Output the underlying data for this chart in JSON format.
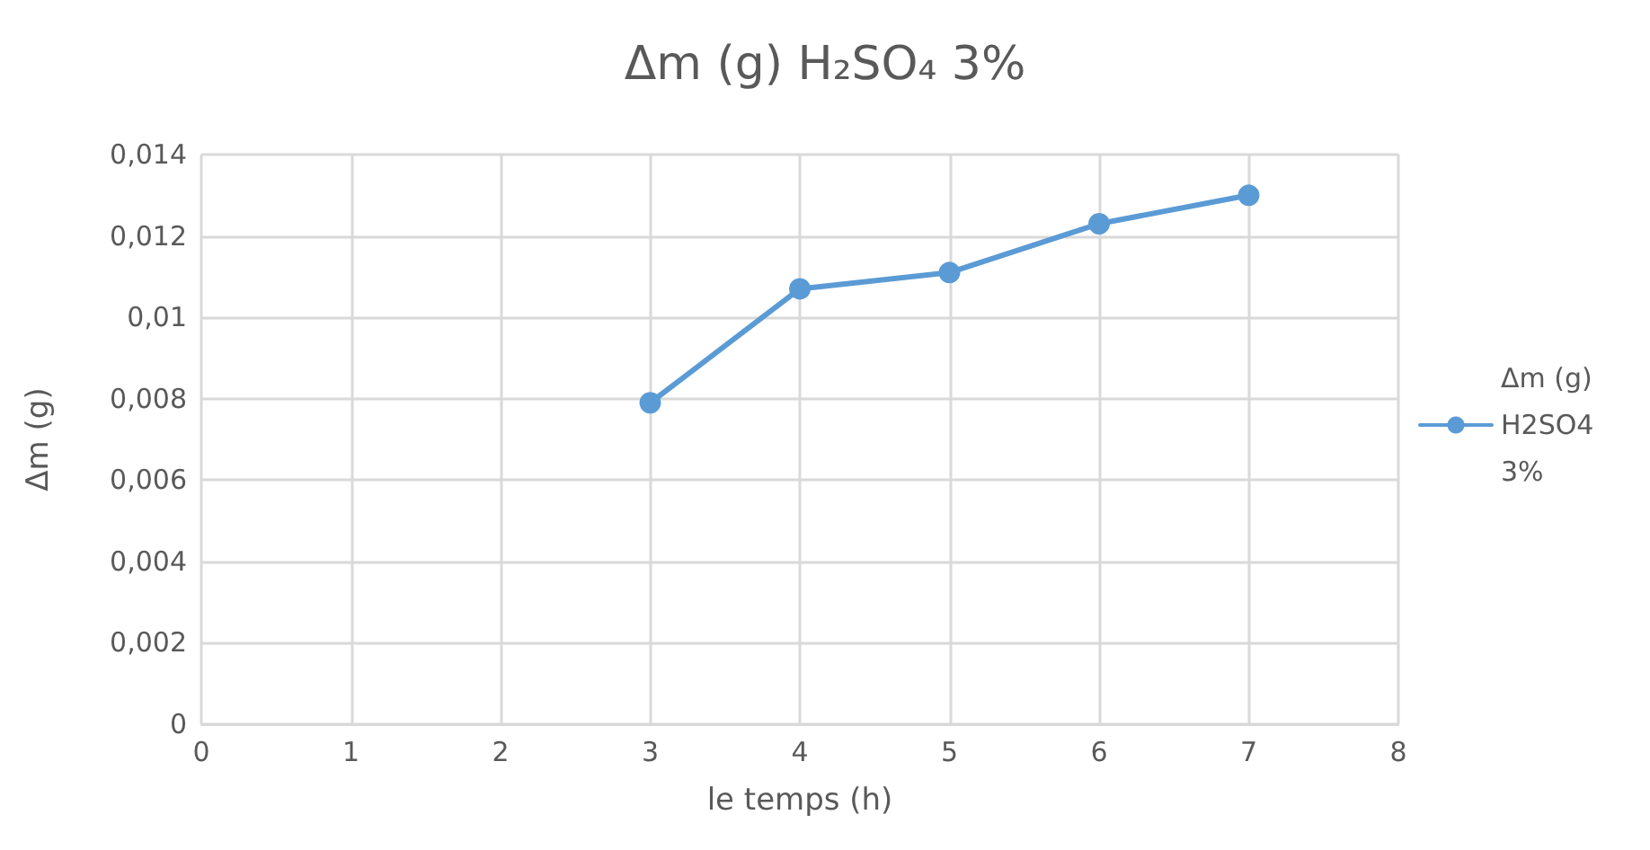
{
  "chart_data": {
    "type": "line",
    "title": "Δm (g) H₂SO₄ 3%",
    "xlabel": "le temps (h)",
    "ylabel": "Δm (g)",
    "x": [
      3,
      4,
      5,
      6,
      7
    ],
    "series": [
      {
        "name": "Δm (g) H2SO4 3%",
        "color": "#5b9bd5",
        "values": [
          0.0079,
          0.0107,
          0.0111,
          0.0123,
          0.013
        ]
      }
    ],
    "xlim": [
      0,
      8
    ],
    "xticks": [
      0,
      1,
      2,
      3,
      4,
      5,
      6,
      7,
      8
    ],
    "ylim": [
      0,
      0.014
    ],
    "yticks": [
      0,
      {
        "value": 0.002,
        "label": "0,002"
      },
      {
        "value": 0.004,
        "label": "0,004"
      },
      {
        "value": 0.006,
        "label": "0,006"
      },
      {
        "value": 0.008,
        "label": "0,008"
      },
      {
        "value": 0.01,
        "label": "0,01"
      },
      {
        "value": 0.012,
        "label": "0,012"
      },
      {
        "value": 0.014,
        "label": "0,014"
      }
    ],
    "grid": true,
    "legend": "right",
    "marker": "circle",
    "line_style": "solid"
  }
}
